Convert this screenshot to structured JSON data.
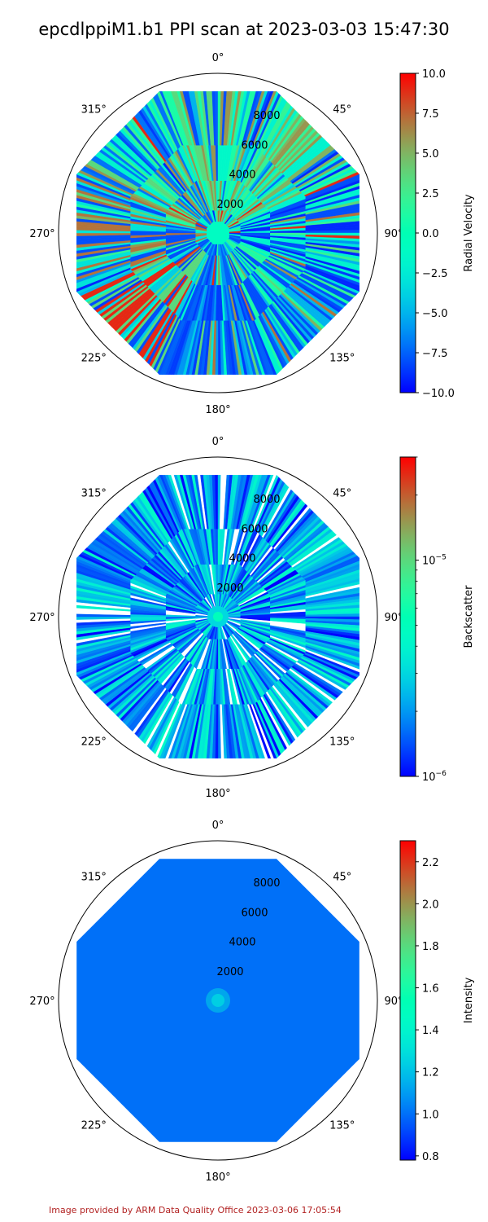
{
  "title": "epcdlppiM1.b1 PPI scan at 2023-03-03 15:47:30",
  "footer": "Image provided by ARM Data Quality Office 2023-03-06 17:05:54",
  "chart_data": [
    {
      "type": "heatmap",
      "projection": "polar",
      "theta_zero": "N",
      "theta_direction": "clockwise",
      "theta_ticks": [
        "0°",
        "45°",
        "90°",
        "135°",
        "180°",
        "225°",
        "270°",
        "315°"
      ],
      "r_ticks": [
        2000,
        4000,
        6000,
        8000
      ],
      "r_tick_labels": [
        "2000",
        "4000",
        "6000",
        "8000"
      ],
      "rlim": [
        0,
        10000
      ],
      "data_extent_r": 9600,
      "grid": false,
      "colormap": "rainbow",
      "colorbar": {
        "label": "Radial Velocity",
        "scale": "linear",
        "range": [
          -10.0,
          10.0
        ],
        "ticks": [
          -10.0,
          -7.5,
          -5.0,
          -2.5,
          0.0,
          2.5,
          5.0,
          7.5,
          10.0
        ],
        "tick_labels": [
          "−10.0",
          "−7.5",
          "−5.0",
          "−2.5",
          "0.0",
          "2.5",
          "5.0",
          "7.5",
          "10.0"
        ]
      },
      "sectors": [
        {
          "azimuth_range": [
            337.5,
            22.5
          ],
          "dominant_values": [
            -1.5,
            3.5,
            6.0,
            1.0
          ]
        },
        {
          "azimuth_range": [
            22.5,
            67.5
          ],
          "dominant_values": [
            2.0,
            -2.0,
            5.0
          ]
        },
        {
          "azimuth_range": [
            67.5,
            112.5
          ],
          "dominant_values": [
            -8.0,
            -9.0,
            -2.0
          ]
        },
        {
          "azimuth_range": [
            112.5,
            157.5
          ],
          "dominant_values": [
            -5.0,
            -8.0,
            1.0
          ]
        },
        {
          "azimuth_range": [
            157.5,
            202.5
          ],
          "dominant_values": [
            -7.5,
            -8.5,
            -6.0
          ]
        },
        {
          "azimuth_range": [
            202.5,
            247.5
          ],
          "dominant_values": [
            -4.0,
            3.5,
            9.0,
            -8.0
          ]
        },
        {
          "azimuth_range": [
            247.5,
            292.5
          ],
          "dominant_values": [
            -3.0,
            7.0,
            -8.0
          ]
        },
        {
          "azimuth_range": [
            292.5,
            337.5
          ],
          "dominant_values": [
            -2.0,
            2.0,
            6.0,
            -7.0
          ]
        }
      ]
    },
    {
      "type": "heatmap",
      "projection": "polar",
      "theta_zero": "N",
      "theta_direction": "clockwise",
      "theta_ticks": [
        "0°",
        "45°",
        "90°",
        "135°",
        "180°",
        "225°",
        "270°",
        "315°"
      ],
      "r_ticks": [
        2000,
        4000,
        6000,
        8000
      ],
      "r_tick_labels": [
        "2000",
        "4000",
        "6000",
        "8000"
      ],
      "rlim": [
        0,
        10000
      ],
      "data_extent_r": 9600,
      "grid": false,
      "colormap": "rainbow",
      "colorbar": {
        "label": "Backscatter",
        "scale": "log",
        "range": [
          1e-06,
          3e-05
        ],
        "ticks": [
          1e-06,
          1e-05
        ],
        "tick_labels": [
          "10−6",
          "10−5"
        ]
      },
      "sectors": [
        {
          "azimuth_range": [
            0,
            360
          ],
          "dominant_values": [
            1e-06,
            1.5e-06,
            2.5e-06
          ]
        }
      ]
    },
    {
      "type": "heatmap",
      "projection": "polar",
      "theta_zero": "N",
      "theta_direction": "clockwise",
      "theta_ticks": [
        "0°",
        "45°",
        "90°",
        "135°",
        "180°",
        "225°",
        "270°",
        "315°"
      ],
      "r_ticks": [
        2000,
        4000,
        6000,
        8000
      ],
      "r_tick_labels": [
        "2000",
        "4000",
        "6000",
        "8000"
      ],
      "rlim": [
        0,
        10000
      ],
      "data_extent_r": 9600,
      "grid": false,
      "colormap": "rainbow",
      "colorbar": {
        "label": "Intensity",
        "scale": "linear",
        "range": [
          0.78,
          2.3
        ],
        "ticks": [
          0.8,
          1.0,
          1.2,
          1.4,
          1.6,
          1.8,
          2.0,
          2.2
        ],
        "tick_labels": [
          "0.8",
          "1.0",
          "1.2",
          "1.4",
          "1.6",
          "1.8",
          "2.0",
          "2.2"
        ]
      },
      "field_value": 1.0,
      "center_value": 1.25
    }
  ]
}
